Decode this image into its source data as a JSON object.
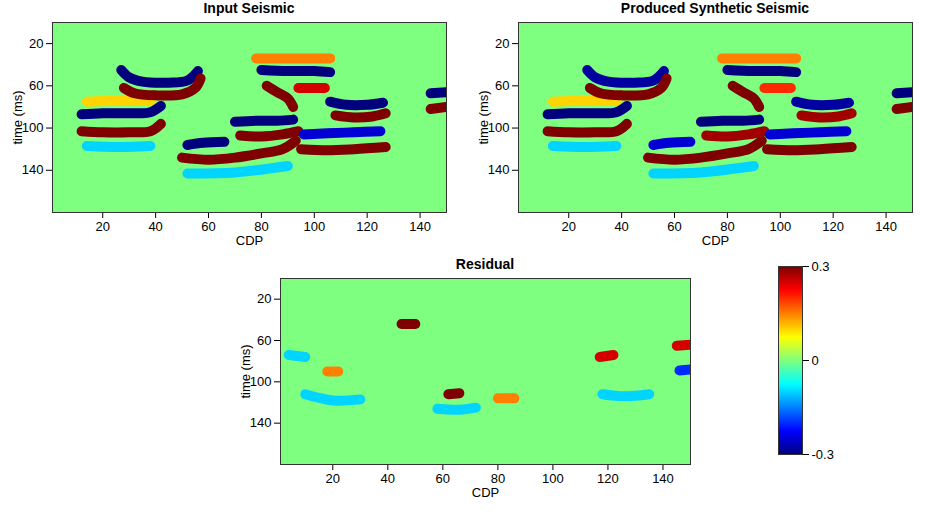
{
  "chart_data": [
    {
      "type": "seismic",
      "title": "Input Seismic",
      "x_label": "CDP",
      "y_label": "time (ms)",
      "xlim": [
        1,
        150
      ],
      "xticks": [
        20,
        40,
        60,
        80,
        100,
        120,
        140
      ],
      "ylim": [
        0,
        180
      ],
      "yticks": [
        20,
        60,
        100,
        140
      ],
      "events": [
        {
          "amplitude": 0.1,
          "points": [
            [
              14,
              75
            ],
            [
              26,
              74
            ],
            [
              38,
              74
            ]
          ]
        },
        {
          "amplitude": -0.1,
          "points": [
            [
              14,
              117
            ],
            [
              26,
              118
            ],
            [
              38,
              117
            ]
          ]
        },
        {
          "amplitude": -0.3,
          "points": [
            [
              12,
              87
            ],
            [
              20,
              86
            ],
            [
              30,
              86
            ],
            [
              38,
              85
            ],
            [
              42,
              79
            ]
          ]
        },
        {
          "amplitude": 0.3,
          "points": [
            [
              12,
              103
            ],
            [
              20,
              104
            ],
            [
              30,
              104
            ],
            [
              38,
              103
            ],
            [
              42,
              96
            ]
          ]
        },
        {
          "amplitude": -0.3,
          "points": [
            [
              27,
              45
            ],
            [
              30,
              52
            ],
            [
              35,
              56
            ],
            [
              45,
              57
            ],
            [
              52,
              55
            ],
            [
              56,
              46
            ]
          ]
        },
        {
          "amplitude": 0.3,
          "points": [
            [
              28,
              62
            ],
            [
              32,
              67
            ],
            [
              40,
              69
            ],
            [
              50,
              68
            ],
            [
              55,
              62
            ],
            [
              57,
              53
            ]
          ]
        },
        {
          "amplitude": -0.1,
          "points": [
            [
              52,
              143
            ],
            [
              70,
              142
            ],
            [
              90,
              136
            ]
          ]
        },
        {
          "amplitude": -0.3,
          "points": [
            [
              52,
              116
            ],
            [
              58,
              114
            ],
            [
              66,
              113
            ]
          ]
        },
        {
          "amplitude": 0.3,
          "points": [
            [
              50,
              128
            ],
            [
              60,
              130
            ],
            [
              70,
              128
            ],
            [
              80,
              124
            ],
            [
              88,
              120
            ],
            [
              93,
              112
            ]
          ]
        },
        {
          "amplitude": -0.3,
          "points": [
            [
              70,
              94
            ],
            [
              78,
              93
            ],
            [
              86,
              93
            ],
            [
              92,
              92
            ]
          ]
        },
        {
          "amplitude": 0.3,
          "points": [
            [
              72,
              107
            ],
            [
              80,
              108
            ],
            [
              88,
              106
            ],
            [
              94,
              103
            ]
          ]
        },
        {
          "amplitude": 0.15,
          "points": [
            [
              78,
              34
            ],
            [
              90,
              34
            ],
            [
              106,
              34
            ]
          ]
        },
        {
          "amplitude": -0.3,
          "points": [
            [
              80,
              45
            ],
            [
              90,
              46
            ],
            [
              100,
              46
            ],
            [
              106,
              47
            ]
          ]
        },
        {
          "amplitude": 0.3,
          "points": [
            [
              82,
              60
            ],
            [
              86,
              66
            ],
            [
              90,
              72
            ],
            [
              92,
              80
            ]
          ]
        },
        {
          "amplitude": 0.25,
          "points": [
            [
              94,
              62
            ],
            [
              104,
              62
            ]
          ]
        },
        {
          "amplitude": -0.25,
          "points": [
            [
              96,
              106
            ],
            [
              105,
              105
            ],
            [
              115,
              104
            ],
            [
              125,
              103
            ]
          ]
        },
        {
          "amplitude": 0.3,
          "points": [
            [
              95,
              120
            ],
            [
              105,
              121
            ],
            [
              115,
              120
            ],
            [
              127,
              118
            ]
          ]
        },
        {
          "amplitude": -0.3,
          "points": [
            [
              106,
              75
            ],
            [
              112,
              78
            ],
            [
              120,
              78
            ],
            [
              126,
              76
            ]
          ]
        },
        {
          "amplitude": 0.3,
          "points": [
            [
              108,
              88
            ],
            [
              115,
              90
            ],
            [
              122,
              89
            ],
            [
              127,
              86
            ]
          ]
        },
        {
          "amplitude": -0.3,
          "points": [
            [
              144,
              67
            ],
            [
              150,
              66
            ]
          ]
        },
        {
          "amplitude": 0.3,
          "points": [
            [
              144,
              82
            ],
            [
              150,
              80
            ]
          ]
        }
      ]
    },
    {
      "type": "seismic",
      "title": "Produced Synthetic Seismic",
      "x_label": "CDP",
      "y_label": "time (ms)",
      "xlim": [
        1,
        150
      ],
      "xticks": [
        20,
        40,
        60,
        80,
        100,
        120,
        140
      ],
      "ylim": [
        0,
        180
      ],
      "yticks": [
        20,
        60,
        100,
        140
      ],
      "events": [
        {
          "amplitude": 0.1,
          "points": [
            [
              14,
              75
            ],
            [
              26,
              74
            ],
            [
              38,
              74
            ]
          ]
        },
        {
          "amplitude": -0.1,
          "points": [
            [
              14,
              117
            ],
            [
              26,
              118
            ],
            [
              38,
              117
            ]
          ]
        },
        {
          "amplitude": -0.3,
          "points": [
            [
              12,
              87
            ],
            [
              20,
              86
            ],
            [
              30,
              86
            ],
            [
              38,
              85
            ],
            [
              42,
              79
            ]
          ]
        },
        {
          "amplitude": 0.3,
          "points": [
            [
              12,
              103
            ],
            [
              20,
              104
            ],
            [
              30,
              104
            ],
            [
              38,
              103
            ],
            [
              42,
              96
            ]
          ]
        },
        {
          "amplitude": -0.28,
          "points": [
            [
              27,
              45
            ],
            [
              30,
              52
            ],
            [
              35,
              56
            ],
            [
              45,
              57
            ],
            [
              52,
              55
            ],
            [
              56,
              46
            ]
          ]
        },
        {
          "amplitude": 0.3,
          "points": [
            [
              28,
              62
            ],
            [
              32,
              67
            ],
            [
              40,
              69
            ],
            [
              50,
              68
            ],
            [
              55,
              62
            ],
            [
              57,
              53
            ]
          ]
        },
        {
          "amplitude": -0.1,
          "points": [
            [
              52,
              143
            ],
            [
              70,
              142
            ],
            [
              90,
              136
            ]
          ]
        },
        {
          "amplitude": -0.25,
          "points": [
            [
              52,
              116
            ],
            [
              58,
              114
            ],
            [
              66,
              113
            ]
          ]
        },
        {
          "amplitude": 0.3,
          "points": [
            [
              50,
              128
            ],
            [
              60,
              130
            ],
            [
              70,
              128
            ],
            [
              80,
              124
            ],
            [
              88,
              120
            ],
            [
              93,
              112
            ]
          ]
        },
        {
          "amplitude": -0.3,
          "points": [
            [
              70,
              94
            ],
            [
              78,
              93
            ],
            [
              86,
              93
            ],
            [
              92,
              92
            ]
          ]
        },
        {
          "amplitude": 0.28,
          "points": [
            [
              72,
              107
            ],
            [
              80,
              108
            ],
            [
              88,
              106
            ],
            [
              94,
              103
            ]
          ]
        },
        {
          "amplitude": 0.15,
          "points": [
            [
              78,
              34
            ],
            [
              90,
              34
            ],
            [
              106,
              34
            ]
          ]
        },
        {
          "amplitude": -0.3,
          "points": [
            [
              80,
              45
            ],
            [
              90,
              46
            ],
            [
              100,
              46
            ],
            [
              106,
              47
            ]
          ]
        },
        {
          "amplitude": 0.3,
          "points": [
            [
              82,
              60
            ],
            [
              86,
              66
            ],
            [
              90,
              72
            ],
            [
              92,
              80
            ]
          ]
        },
        {
          "amplitude": 0.2,
          "points": [
            [
              94,
              62
            ],
            [
              104,
              62
            ]
          ]
        },
        {
          "amplitude": -0.25,
          "points": [
            [
              96,
              106
            ],
            [
              105,
              105
            ],
            [
              115,
              104
            ],
            [
              125,
              103
            ]
          ]
        },
        {
          "amplitude": 0.3,
          "points": [
            [
              95,
              120
            ],
            [
              105,
              121
            ],
            [
              115,
              120
            ],
            [
              127,
              118
            ]
          ]
        },
        {
          "amplitude": -0.28,
          "points": [
            [
              106,
              75
            ],
            [
              112,
              78
            ],
            [
              120,
              78
            ],
            [
              126,
              76
            ]
          ]
        },
        {
          "amplitude": 0.28,
          "points": [
            [
              108,
              88
            ],
            [
              115,
              90
            ],
            [
              122,
              89
            ],
            [
              127,
              86
            ]
          ]
        },
        {
          "amplitude": -0.3,
          "points": [
            [
              144,
              67
            ],
            [
              150,
              66
            ]
          ]
        },
        {
          "amplitude": 0.3,
          "points": [
            [
              144,
              82
            ],
            [
              150,
              80
            ]
          ]
        }
      ]
    },
    {
      "type": "seismic",
      "title": "Residual",
      "x_label": "CDP",
      "y_label": "time (ms)",
      "xlim": [
        1,
        150
      ],
      "xticks": [
        20,
        40,
        60,
        80,
        100,
        120,
        140
      ],
      "ylim": [
        0,
        180
      ],
      "yticks": [
        20,
        60,
        100,
        140
      ],
      "events": [
        {
          "amplitude": -0.1,
          "points": [
            [
              10,
              112
            ],
            [
              20,
              118
            ],
            [
              30,
              117
            ]
          ]
        },
        {
          "amplitude": -0.1,
          "points": [
            [
              58,
              126
            ],
            [
              66,
              127
            ],
            [
              72,
              125
            ]
          ]
        },
        {
          "amplitude": -0.1,
          "points": [
            [
              118,
              112
            ],
            [
              126,
              114
            ],
            [
              135,
              112
            ]
          ]
        },
        {
          "amplitude": -0.1,
          "points": [
            [
              4,
              74
            ],
            [
              10,
              76
            ]
          ]
        },
        {
          "amplitude": 0.15,
          "points": [
            [
              18,
              90
            ],
            [
              22,
              90
            ]
          ]
        },
        {
          "amplitude": 0.3,
          "points": [
            [
              45,
              44
            ],
            [
              50,
              44
            ]
          ]
        },
        {
          "amplitude": 0.3,
          "points": [
            [
              62,
              112
            ],
            [
              66,
              111
            ]
          ]
        },
        {
          "amplitude": 0.15,
          "points": [
            [
              80,
              116
            ],
            [
              86,
              116
            ]
          ]
        },
        {
          "amplitude": 0.25,
          "points": [
            [
              117,
              76
            ],
            [
              122,
              74
            ]
          ]
        },
        {
          "amplitude": 0.25,
          "points": [
            [
              145,
              65
            ],
            [
              150,
              64
            ]
          ]
        },
        {
          "amplitude": -0.2,
          "points": [
            [
              146,
              89
            ],
            [
              150,
              88
            ]
          ]
        }
      ],
      "colorbar": {
        "range": [
          -0.3,
          0.3
        ],
        "ticks": [
          -0.3,
          0,
          0.3
        ]
      }
    }
  ]
}
